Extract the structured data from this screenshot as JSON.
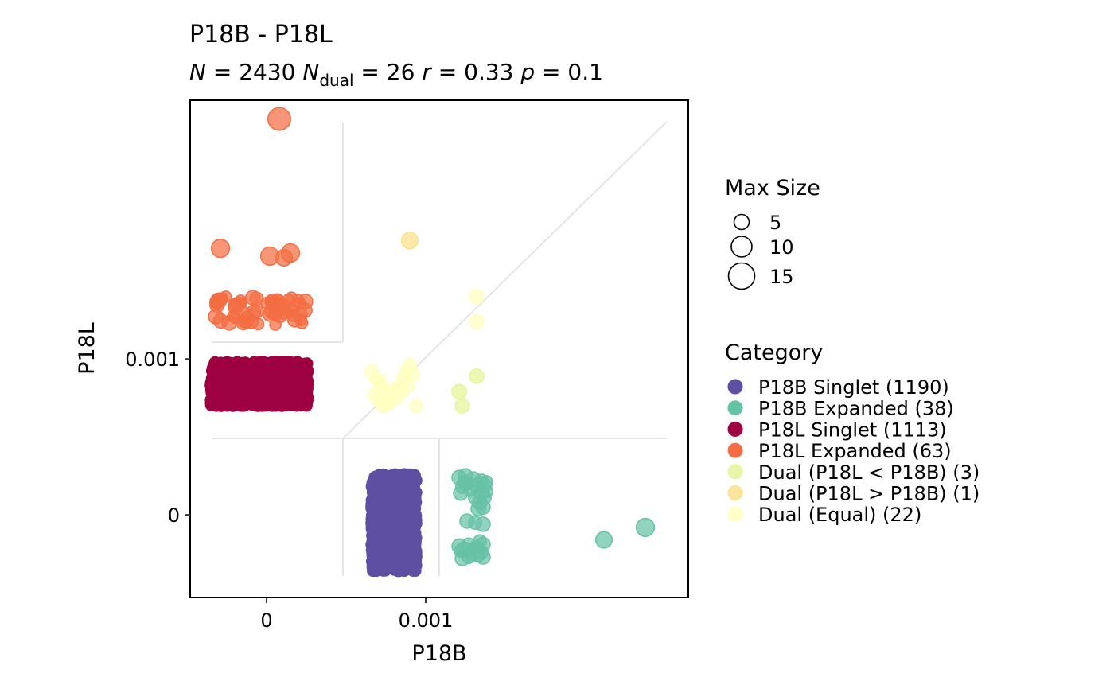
{
  "chart_data": {
    "type": "scatter",
    "title": "P18B - P18L",
    "subtitle": {
      "N": "2430",
      "N_dual": "26",
      "r": "0.33",
      "p": "0.1"
    },
    "xlabel": "P18B",
    "ylabel": "P18L",
    "xlim": [
      -0.00048,
      0.00265
    ],
    "ylim": [
      -0.00053,
      0.00266
    ],
    "x_ticks": [
      {
        "value": 0,
        "label": "0"
      },
      {
        "value": 0.001,
        "label": "0.001"
      }
    ],
    "y_ticks": [
      {
        "value": 0,
        "label": "0"
      },
      {
        "value": 0.001,
        "label": "0.001"
      }
    ],
    "grid": false,
    "size_legend": {
      "title": "Max Size",
      "entries": [
        {
          "value": 5,
          "label": "5"
        },
        {
          "value": 10,
          "label": "10"
        },
        {
          "value": 15,
          "label": "15"
        }
      ]
    },
    "category_legend": {
      "title": "Category",
      "placement": "right"
    },
    "series": [
      {
        "name": "P18B Singlet (1190)",
        "color": "#5E4FA2",
        "count": 1190,
        "x_range": [
          0.00066,
          0.00094
        ],
        "y_range": [
          -0.00036,
          0.00026
        ],
        "max_size": 1
      },
      {
        "name": "P18B Expanded (38)",
        "color": "#66C2A5",
        "count": 38,
        "points": [
          {
            "x": 0.00121,
            "y": 0.00024,
            "size": 3
          },
          {
            "x": 0.00125,
            "y": 0.00025,
            "size": 3
          },
          {
            "x": 0.0013,
            "y": 0.00023,
            "size": 3
          },
          {
            "x": 0.00135,
            "y": 0.00022,
            "size": 2
          },
          {
            "x": 0.00137,
            "y": 0.00019,
            "size": 3
          },
          {
            "x": 0.00132,
            "y": 0.00019,
            "size": 3
          },
          {
            "x": 0.00123,
            "y": 0.00018,
            "size": 2
          },
          {
            "x": 0.00122,
            "y": 0.00014,
            "size": 3
          },
          {
            "x": 0.00135,
            "y": 0.00014,
            "size": 3
          },
          {
            "x": 0.00138,
            "y": 0.00015,
            "size": 2
          },
          {
            "x": 0.00134,
            "y": 8e-05,
            "size": 3
          },
          {
            "x": 0.00136,
            "y": 5e-05,
            "size": 3
          },
          {
            "x": 0.00133,
            "y": 4e-05,
            "size": 3
          },
          {
            "x": 0.00126,
            "y": -4e-05,
            "size": 3
          },
          {
            "x": 0.00131,
            "y": -5e-05,
            "size": 2
          },
          {
            "x": 0.00136,
            "y": -6e-05,
            "size": 3
          },
          {
            "x": 0.00121,
            "y": -0.0002,
            "size": 3
          },
          {
            "x": 0.00124,
            "y": -0.00022,
            "size": 3
          },
          {
            "x": 0.00127,
            "y": -0.00019,
            "size": 2
          },
          {
            "x": 0.00132,
            "y": -0.00021,
            "size": 3
          },
          {
            "x": 0.00136,
            "y": -0.00019,
            "size": 3
          },
          {
            "x": 0.00123,
            "y": -0.00028,
            "size": 3
          },
          {
            "x": 0.00129,
            "y": -0.00025,
            "size": 3
          },
          {
            "x": 0.00133,
            "y": -0.00026,
            "size": 2
          },
          {
            "x": 0.00136,
            "y": -0.00027,
            "size": 3
          },
          {
            "x": 0.00126,
            "y": 0.0002,
            "size": 2
          },
          {
            "x": 0.00138,
            "y": 0.00021,
            "size": 2
          },
          {
            "x": 0.00122,
            "y": -0.00023,
            "size": 2
          },
          {
            "x": 0.0013,
            "y": -0.00022,
            "size": 2
          },
          {
            "x": 0.00134,
            "y": -0.00017,
            "size": 2
          },
          {
            "x": 0.00131,
            "y": 0.00011,
            "size": 2
          },
          {
            "x": 0.00137,
            "y": 0.00011,
            "size": 2
          },
          {
            "x": 0.00128,
            "y": 0.00016,
            "size": 2
          },
          {
            "x": 0.00124,
            "y": 0.00021,
            "size": 2
          },
          {
            "x": 0.00135,
            "y": -0.00024,
            "size": 2
          },
          {
            "x": 0.00127,
            "y": -0.00027,
            "size": 2
          },
          {
            "x": 0.00212,
            "y": -0.00016,
            "size": 5
          },
          {
            "x": 0.00238,
            "y": -8e-05,
            "size": 7
          }
        ]
      },
      {
        "name": "P18L Singlet (1113)",
        "color": "#9E0142",
        "count": 1113,
        "x_range": [
          -0.00035,
          0.00026
        ],
        "y_range": [
          0.0007,
          0.00098
        ],
        "max_size": 1
      },
      {
        "name": "P18L Expanded (63)",
        "color": "#F46D43",
        "count": 63,
        "points": [
          {
            "x": 8e-05,
            "y": 0.00254,
            "size": 14
          },
          {
            "x": -0.00029,
            "y": 0.00171,
            "size": 7
          },
          {
            "x": 2e-05,
            "y": 0.00166,
            "size": 7
          },
          {
            "x": 0.00015,
            "y": 0.00168,
            "size": 7
          },
          {
            "x": 0.00011,
            "y": 0.00165,
            "size": 5
          }
        ],
        "cluster": {
          "count": 58,
          "x_range": [
            -0.00034,
            0.00027
          ],
          "y_range": [
            0.00122,
            0.0014
          ],
          "max_size": 3
        }
      },
      {
        "name": "Dual (P18L < P18B) (3)",
        "color": "#E6F598",
        "count": 3,
        "points": [
          {
            "x": 0.00121,
            "y": 0.00079,
            "size": 3
          },
          {
            "x": 0.00123,
            "y": 0.0007,
            "size": 3
          },
          {
            "x": 0.00132,
            "y": 0.00089,
            "size": 3
          }
        ]
      },
      {
        "name": "Dual (P18L > P18B) (1)",
        "color": "#FEE08B",
        "count": 1,
        "points": [
          {
            "x": 0.0009,
            "y": 0.00176,
            "size": 5
          }
        ]
      },
      {
        "name": "Dual (Equal) (22)",
        "color": "#FFFFBF",
        "count": 22,
        "points": [
          {
            "x": 0.00066,
            "y": 0.00092,
            "size": 2
          },
          {
            "x": 0.00069,
            "y": 0.00087,
            "size": 2
          },
          {
            "x": 0.00068,
            "y": 0.00077,
            "size": 2
          },
          {
            "x": 0.00072,
            "y": 0.00083,
            "size": 2
          },
          {
            "x": 0.0007,
            "y": 0.00074,
            "size": 2
          },
          {
            "x": 0.00073,
            "y": 0.0007,
            "size": 2
          },
          {
            "x": 0.00076,
            "y": 0.00071,
            "size": 2
          },
          {
            "x": 0.00079,
            "y": 0.0008,
            "size": 2
          },
          {
            "x": 0.00082,
            "y": 0.00075,
            "size": 2
          },
          {
            "x": 0.00085,
            "y": 0.00079,
            "size": 2
          },
          {
            "x": 0.00086,
            "y": 0.00088,
            "size": 2
          },
          {
            "x": 0.00088,
            "y": 0.00092,
            "size": 2
          },
          {
            "x": 0.00089,
            "y": 0.00083,
            "size": 2
          },
          {
            "x": 0.0009,
            "y": 0.00096,
            "size": 2
          },
          {
            "x": 0.00083,
            "y": 0.00082,
            "size": 2
          },
          {
            "x": 0.00078,
            "y": 0.00074,
            "size": 2
          },
          {
            "x": 0.00075,
            "y": 0.00078,
            "size": 2
          },
          {
            "x": 0.00094,
            "y": 0.0007,
            "size": 2
          },
          {
            "x": 0.00092,
            "y": 0.0009,
            "size": 2
          },
          {
            "x": 0.00132,
            "y": 0.0014,
            "size": 3
          },
          {
            "x": 0.00132,
            "y": 0.00124,
            "size": 3
          },
          {
            "x": 0.00071,
            "y": 0.00086,
            "size": 2
          }
        ]
      }
    ]
  }
}
